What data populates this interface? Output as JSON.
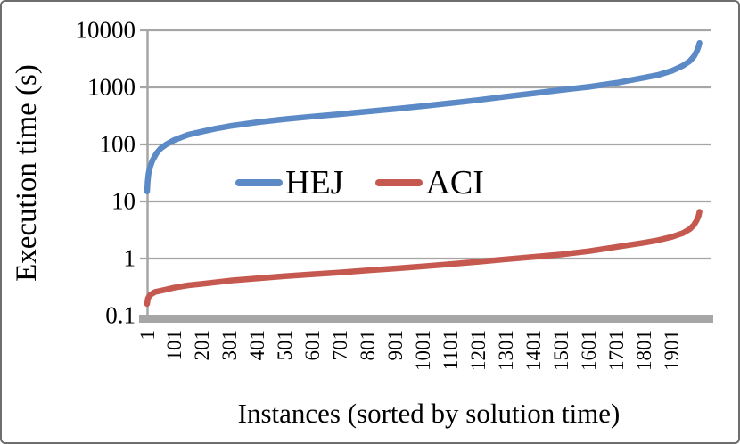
{
  "chart_data": {
    "type": "line",
    "title": "",
    "xlabel": "Instances (sorted by solution time)",
    "ylabel": "Execution time (s)",
    "y_scale": "log10",
    "ylim": [
      0.1,
      10000
    ],
    "xlim": [
      1,
      2040
    ],
    "grid": "horizontal",
    "grid_color": "#a6a6a6",
    "axis_color": "#a6a6a6",
    "baseline_bar_color": "#a6a6a6",
    "legend_position": "inside-plot-center-left",
    "y_tick_labels": [
      "10000",
      "1000",
      "100",
      "10",
      "1",
      "0.1"
    ],
    "y_tick_values": [
      10000,
      1000,
      100,
      10,
      1,
      0.1
    ],
    "x_tick_labels": [
      "1",
      "101",
      "201",
      "301",
      "401",
      "501",
      "601",
      "701",
      "801",
      "901",
      "1001",
      "1101",
      "1201",
      "1301",
      "1401",
      "1501",
      "1601",
      "1701",
      "1801",
      "1901"
    ],
    "x_tick_values": [
      1,
      101,
      201,
      301,
      401,
      501,
      601,
      701,
      801,
      901,
      1001,
      1101,
      1201,
      1301,
      1401,
      1501,
      1601,
      1701,
      1801,
      1901
    ],
    "series": [
      {
        "name": "HEJ",
        "color": "#5b8ac6",
        "points": [
          [
            1,
            15
          ],
          [
            3,
            22
          ],
          [
            6,
            30
          ],
          [
            10,
            38
          ],
          [
            20,
            52
          ],
          [
            35,
            70
          ],
          [
            50,
            85
          ],
          [
            70,
            100
          ],
          [
            100,
            120
          ],
          [
            150,
            148
          ],
          [
            200,
            168
          ],
          [
            250,
            190
          ],
          [
            300,
            210
          ],
          [
            400,
            245
          ],
          [
            500,
            278
          ],
          [
            600,
            308
          ],
          [
            700,
            340
          ],
          [
            800,
            378
          ],
          [
            900,
            420
          ],
          [
            1000,
            470
          ],
          [
            1100,
            530
          ],
          [
            1200,
            600
          ],
          [
            1300,
            690
          ],
          [
            1400,
            790
          ],
          [
            1500,
            900
          ],
          [
            1600,
            1020
          ],
          [
            1700,
            1200
          ],
          [
            1800,
            1480
          ],
          [
            1850,
            1650
          ],
          [
            1900,
            1950
          ],
          [
            1940,
            2400
          ],
          [
            1965,
            2900
          ],
          [
            1980,
            3500
          ],
          [
            1990,
            4300
          ],
          [
            1996,
            5100
          ],
          [
            2000,
            6000
          ]
        ]
      },
      {
        "name": "ACI",
        "color": "#c5584f",
        "points": [
          [
            1,
            0.16
          ],
          [
            4,
            0.2
          ],
          [
            12,
            0.23
          ],
          [
            30,
            0.26
          ],
          [
            60,
            0.28
          ],
          [
            100,
            0.31
          ],
          [
            150,
            0.34
          ],
          [
            200,
            0.36
          ],
          [
            300,
            0.41
          ],
          [
            400,
            0.45
          ],
          [
            500,
            0.49
          ],
          [
            600,
            0.53
          ],
          [
            700,
            0.57
          ],
          [
            800,
            0.62
          ],
          [
            900,
            0.67
          ],
          [
            1000,
            0.73
          ],
          [
            1100,
            0.8
          ],
          [
            1200,
            0.88
          ],
          [
            1300,
            0.97
          ],
          [
            1400,
            1.07
          ],
          [
            1500,
            1.18
          ],
          [
            1600,
            1.35
          ],
          [
            1700,
            1.6
          ],
          [
            1800,
            1.9
          ],
          [
            1850,
            2.1
          ],
          [
            1900,
            2.4
          ],
          [
            1940,
            2.8
          ],
          [
            1965,
            3.3
          ],
          [
            1980,
            3.9
          ],
          [
            1990,
            4.7
          ],
          [
            1996,
            5.5
          ],
          [
            2000,
            6.6
          ]
        ]
      }
    ]
  }
}
